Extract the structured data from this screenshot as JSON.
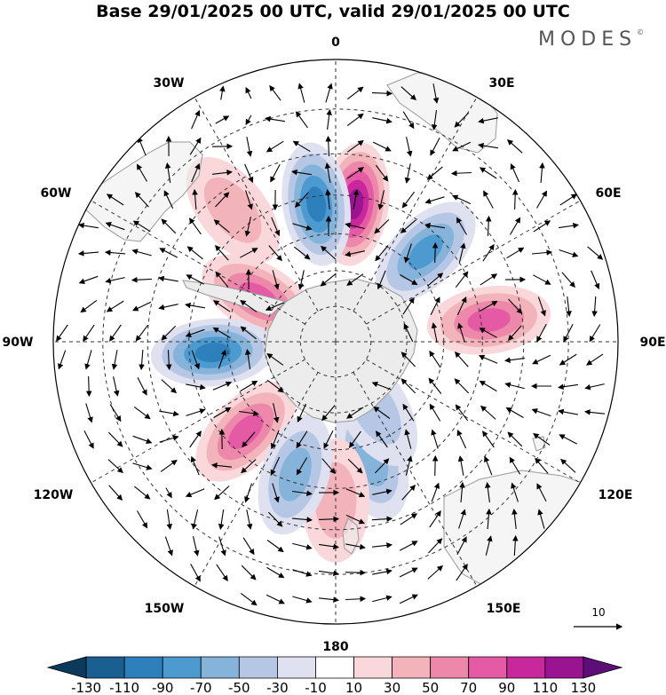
{
  "header": {
    "title": "Base 29/01/2025 00 UTC, valid 29/01/2025 00 UTC",
    "brand": "MODES",
    "brand_mark": "©"
  },
  "map": {
    "projection": "south-polar-stereographic",
    "longitude_labels": {
      "top": "0",
      "top_right": "30E",
      "right_upper": "60E",
      "right": "90E",
      "right_lower": "120E",
      "bottom_right": "150E",
      "bottom": "180",
      "bottom_left": "150W",
      "left_lower": "120W",
      "left": "90W",
      "left_upper": "60W",
      "top_left": "30W"
    },
    "reference_vector": {
      "label": "10"
    },
    "anomaly_cells": [
      {
        "lon": 8,
        "lat": -52,
        "value": 125
      },
      {
        "lon": -8,
        "lat": -52,
        "value": -100
      },
      {
        "lon": 45,
        "lat": -55,
        "value": -85
      },
      {
        "lon": -60,
        "lat": -65,
        "value": 70
      },
      {
        "lon": -95,
        "lat": -56,
        "value": -105
      },
      {
        "lon": 82,
        "lat": -48,
        "value": 80
      },
      {
        "lon": -135,
        "lat": -55,
        "value": 75
      },
      {
        "lon": 163,
        "lat": -56,
        "value": -60
      },
      {
        "lon": 180,
        "lat": -47,
        "value": 30
      },
      {
        "lon": -163,
        "lat": -52,
        "value": -50
      },
      {
        "lon": 150,
        "lat": -68,
        "value": -30
      },
      {
        "lon": -38,
        "lat": -45,
        "value": 30
      }
    ]
  },
  "colorbar": {
    "colors": [
      "#0b3a5c",
      "#1a5f92",
      "#2e80bd",
      "#4c9ad0",
      "#86b3da",
      "#b5c7e4",
      "#dfe1f0",
      "#ffffff",
      "#f9d7da",
      "#f3b3bb",
      "#ee88ab",
      "#e45aa4",
      "#c8289b",
      "#9a1390",
      "#5e0e78"
    ],
    "ticks": [
      "-130",
      "-110",
      "-90",
      "-70",
      "-50",
      "-30",
      "-10",
      "10",
      "30",
      "50",
      "70",
      "90",
      "110",
      "130"
    ]
  }
}
